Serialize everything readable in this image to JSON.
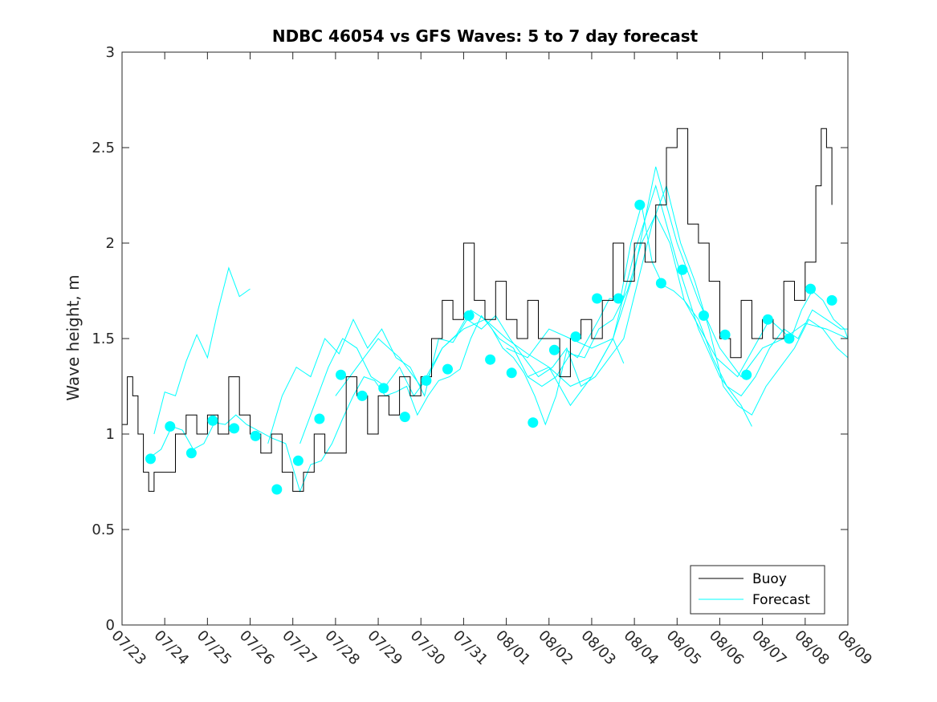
{
  "chart_data": {
    "type": "line",
    "title": "NDBC 46054 vs GFS Waves: 5 to 7 day forecast",
    "xlabel": "",
    "ylabel": "Wave height, m",
    "ylim": [
      0,
      3
    ],
    "yticks": [
      0,
      0.5,
      1,
      1.5,
      2,
      2.5,
      3
    ],
    "xlim": [
      "2023-07-23",
      "2023-08-09"
    ],
    "xtick_labels": [
      "07/23",
      "07/24",
      "07/25",
      "07/26",
      "07/27",
      "07/28",
      "07/29",
      "07/30",
      "07/31",
      "08/01",
      "08/02",
      "08/03",
      "08/04",
      "08/05",
      "08/06",
      "08/07",
      "08/08",
      "08/09"
    ],
    "grid": false,
    "legend": {
      "position": "bottom-right",
      "entries": [
        "Buoy",
        "Forecast"
      ]
    },
    "colors": {
      "buoy": "#000000",
      "forecast": "#00ffff",
      "axis": "#262626"
    },
    "series": [
      {
        "name": "Buoy",
        "color": "#000000",
        "x": [
          "07/23 00:00",
          "07/23 03:00",
          "07/23 06:00",
          "07/23 09:00",
          "07/23 12:00",
          "07/23 15:00",
          "07/23 18:00",
          "07/24 00:00",
          "07/24 06:00",
          "07/24 12:00",
          "07/24 18:00",
          "07/25 00:00",
          "07/25 06:00",
          "07/25 12:00",
          "07/25 18:00",
          "07/26 00:00",
          "07/26 06:00",
          "07/26 12:00",
          "07/26 18:00",
          "07/27 00:00",
          "07/27 06:00",
          "07/27 12:00",
          "07/27 18:00",
          "07/28 00:00",
          "07/28 06:00",
          "07/28 12:00",
          "07/28 18:00",
          "07/29 00:00",
          "07/29 06:00",
          "07/29 12:00",
          "07/29 18:00",
          "07/30 00:00",
          "07/30 06:00",
          "07/30 12:00",
          "07/30 18:00",
          "07/31 00:00",
          "07/31 06:00",
          "07/31 12:00",
          "07/31 18:00",
          "08/01 00:00",
          "08/01 06:00",
          "08/01 12:00",
          "08/01 18:00",
          "08/02 00:00",
          "08/02 06:00",
          "08/02 12:00",
          "08/02 18:00",
          "08/03 00:00",
          "08/03 06:00",
          "08/03 12:00",
          "08/03 18:00",
          "08/04 00:00",
          "08/04 06:00",
          "08/04 12:00",
          "08/04 18:00",
          "08/05 00:00",
          "08/05 06:00",
          "08/05 12:00",
          "08/05 18:00",
          "08/06 00:00",
          "08/06 06:00",
          "08/06 12:00",
          "08/06 18:00",
          "08/07 00:00",
          "08/07 06:00",
          "08/07 12:00",
          "08/07 18:00",
          "08/08 00:00",
          "08/08 06:00",
          "08/08 09:00",
          "08/08 12:00",
          "08/08 15:00"
        ],
        "values": [
          1.05,
          1.3,
          1.2,
          1.0,
          0.8,
          0.7,
          0.8,
          0.8,
          1.0,
          1.1,
          1.0,
          1.1,
          1.0,
          1.3,
          1.1,
          1.0,
          0.9,
          1.0,
          0.8,
          0.7,
          0.8,
          1.0,
          0.9,
          0.9,
          1.3,
          1.2,
          1.0,
          1.2,
          1.1,
          1.3,
          1.2,
          1.3,
          1.5,
          1.7,
          1.6,
          2.0,
          1.7,
          1.6,
          1.8,
          1.6,
          1.5,
          1.7,
          1.5,
          1.5,
          1.3,
          1.5,
          1.6,
          1.5,
          1.7,
          2.0,
          1.8,
          2.0,
          1.9,
          2.2,
          2.5,
          2.6,
          2.1,
          2.0,
          1.8,
          1.5,
          1.4,
          1.7,
          1.5,
          1.6,
          1.5,
          1.8,
          1.7,
          1.9,
          2.3,
          2.6,
          2.5,
          2.2
        ]
      }
    ],
    "forecast_runs": [
      {
        "x": [
          "07/23 16:00",
          "07/23 22:00",
          "07/24 04:00",
          "07/24 10:00",
          "07/24 16:00",
          "07/24 22:00",
          "07/25 04:00",
          "07/25 10:00",
          "07/25 16:00",
          "07/25 22:00",
          "07/26 04:00",
          "07/26 12:00",
          "07/26 20:00",
          "07/27 04:00",
          "07/27 10:00",
          "07/27 16:00",
          "07/27 22:00",
          "07/28 04:00",
          "07/28 10:00",
          "07/28 16:00",
          "07/28 22:00",
          "07/29 04:00",
          "07/29 10:00",
          "07/29 16:00",
          "07/29 22:00",
          "07/30 04:00",
          "07/30 10:00",
          "07/30 16:00",
          "07/30 22:00",
          "07/31 04:00",
          "07/31 10:00",
          "07/31 16:00",
          "07/31 22:00",
          "08/01 04:00",
          "08/01 10:00",
          "08/01 16:00",
          "08/01 22:00",
          "08/02 04:00",
          "08/02 10:00",
          "08/02 16:00",
          "08/02 22:00",
          "08/03 04:00",
          "08/03 10:00",
          "08/03 16:00",
          "08/03 22:00",
          "08/04 04:00",
          "08/04 10:00",
          "08/04 16:00",
          "08/04 22:00",
          "08/05 04:00",
          "08/05 10:00",
          "08/05 16:00",
          "08/05 22:00",
          "08/06 04:00",
          "08/06 10:00",
          "08/06 16:00",
          "08/06 22:00",
          "08/07 04:00",
          "08/07 10:00",
          "08/07 16:00",
          "08/07 22:00",
          "08/08 04:00",
          "08/08 10:00",
          "08/08 16:00",
          "08/08 22:00",
          "08/09 00:00"
        ],
        "values": [
          0.88,
          0.92,
          1.04,
          1.02,
          0.92,
          0.95,
          1.06,
          1.05,
          1.1,
          1.05,
          1.02,
          0.98,
          0.95,
          0.7,
          0.84,
          0.86,
          0.95,
          1.08,
          1.2,
          1.3,
          1.28,
          1.2,
          1.22,
          1.25,
          1.1,
          1.2,
          1.28,
          1.3,
          1.34,
          1.5,
          1.62,
          1.55,
          1.45,
          1.4,
          1.32,
          1.2,
          1.05,
          1.2,
          1.44,
          1.4,
          1.5,
          1.6,
          1.71,
          1.7,
          2.0,
          2.2,
          1.9,
          1.78,
          1.75,
          1.7,
          1.6,
          1.5,
          1.4,
          1.35,
          1.3,
          1.4,
          1.5,
          1.6,
          1.55,
          1.5,
          1.65,
          1.75,
          1.7,
          1.6,
          1.55,
          1.5
        ]
      },
      {
        "x": [
          "07/23 18:00",
          "07/24 00:00",
          "07/24 06:00",
          "07/24 12:00",
          "07/24 18:00",
          "07/25 00:00",
          "07/25 06:00",
          "07/25 12:00",
          "07/25 18:00",
          "07/26 00:00"
        ],
        "values": [
          1.0,
          1.22,
          1.2,
          1.38,
          1.52,
          1.4,
          1.65,
          1.87,
          1.72,
          1.76
        ]
      },
      {
        "x": [
          "07/26 10:00",
          "07/26 18:00",
          "07/27 02:00",
          "07/27 10:00",
          "07/27 18:00",
          "07/28 02:00",
          "07/28 10:00",
          "07/28 18:00",
          "07/29 02:00",
          "07/29 10:00",
          "07/29 18:00",
          "07/30 02:00",
          "07/30 10:00",
          "07/30 18:00",
          "07/31 02:00",
          "07/31 10:00",
          "07/31 18:00",
          "08/01 02:00",
          "08/01 10:00",
          "08/01 18:00",
          "08/02 02:00",
          "08/02 10:00",
          "08/02 18:00",
          "08/03 02:00",
          "08/03 10:00",
          "08/03 18:00",
          "08/04 02:00",
          "08/04 10:00",
          "08/04 18:00",
          "08/05 02:00",
          "08/05 10:00",
          "08/05 18:00",
          "08/06 02:00",
          "08/06 10:00",
          "08/06 18:00",
          "08/07 02:00",
          "08/07 10:00",
          "08/07 18:00",
          "08/08 02:00",
          "08/08 10:00",
          "08/08 18:00",
          "08/09 00:00"
        ],
        "values": [
          0.95,
          1.2,
          1.35,
          1.3,
          1.5,
          1.42,
          1.6,
          1.45,
          1.55,
          1.4,
          1.35,
          1.2,
          1.5,
          1.48,
          1.6,
          1.55,
          1.62,
          1.5,
          1.4,
          1.3,
          1.35,
          1.45,
          1.25,
          1.3,
          1.4,
          1.5,
          1.8,
          2.1,
          2.3,
          2.0,
          1.8,
          1.55,
          1.25,
          1.15,
          1.1,
          1.25,
          1.35,
          1.45,
          1.6,
          1.55,
          1.45,
          1.4
        ]
      },
      {
        "x": [
          "07/27 04:00",
          "07/27 12:00",
          "07/27 20:00",
          "07/28 04:00",
          "07/28 12:00",
          "07/28 20:00",
          "07/29 04:00",
          "07/29 12:00",
          "07/29 20:00",
          "07/30 04:00",
          "07/30 12:00",
          "07/30 20:00",
          "07/31 04:00",
          "07/31 12:00",
          "07/31 20:00",
          "08/01 04:00",
          "08/01 12:00",
          "08/01 20:00",
          "08/02 04:00",
          "08/02 12:00",
          "08/02 20:00",
          "08/03 04:00",
          "08/03 12:00",
          "08/03 20:00",
          "08/04 04:00",
          "08/04 12:00",
          "08/04 20:00",
          "08/05 04:00",
          "08/05 12:00",
          "08/05 20:00",
          "08/06 04:00",
          "08/06 12:00",
          "08/06 20:00",
          "08/07 04:00",
          "08/07 12:00",
          "08/07 20:00",
          "08/08 04:00",
          "08/08 12:00",
          "08/08 20:00",
          "08/09 00:00"
        ],
        "values": [
          0.95,
          1.15,
          1.35,
          1.5,
          1.45,
          1.3,
          1.25,
          1.35,
          1.2,
          1.3,
          1.45,
          1.52,
          1.65,
          1.6,
          1.5,
          1.45,
          1.3,
          1.25,
          1.3,
          1.42,
          1.4,
          1.55,
          1.6,
          1.75,
          2.0,
          2.15,
          2.0,
          1.7,
          1.6,
          1.4,
          1.25,
          1.2,
          1.3,
          1.45,
          1.55,
          1.5,
          1.65,
          1.6,
          1.55,
          1.55
        ]
      },
      {
        "x": [
          "07/28 00:00",
          "07/28 12:00",
          "07/29 00:00",
          "07/29 12:00",
          "07/30 00:00",
          "07/30 12:00",
          "07/31 00:00",
          "07/31 12:00",
          "08/01 00:00",
          "08/01 12:00",
          "08/02 00:00",
          "08/02 12:00",
          "08/03 00:00",
          "08/03 12:00",
          "08/04 00:00",
          "08/04 12:00",
          "08/05 00:00",
          "08/05 12:00",
          "08/06 00:00",
          "08/06 12:00",
          "08/07 00:00",
          "08/07 12:00",
          "08/08 00:00",
          "08/08 12:00",
          "08/09 00:00"
        ],
        "values": [
          1.2,
          1.35,
          1.5,
          1.4,
          1.25,
          1.45,
          1.55,
          1.6,
          1.5,
          1.42,
          1.35,
          1.15,
          1.3,
          1.5,
          1.85,
          2.4,
          2.0,
          1.7,
          1.45,
          1.3,
          1.45,
          1.5,
          1.58,
          1.55,
          1.5
        ]
      },
      {
        "x": [
          "08/01 12:00",
          "08/02 00:00",
          "08/02 12:00",
          "08/03 00:00",
          "08/03 12:00",
          "08/04 00:00",
          "08/04 12:00",
          "08/05 00:00",
          "08/05 12:00",
          "08/06 00:00",
          "08/06 12:00",
          "08/06 18:00"
        ],
        "values": [
          1.3,
          1.35,
          1.25,
          1.3,
          1.5,
          1.95,
          2.3,
          1.9,
          1.55,
          1.3,
          1.15,
          1.04
        ]
      },
      {
        "x": [
          "08/01 00:00",
          "08/01 12:00",
          "08/02 00:00",
          "08/02 12:00",
          "08/03 00:00",
          "08/03 12:00",
          "08/03 18:00"
        ],
        "values": [
          1.45,
          1.4,
          1.55,
          1.5,
          1.45,
          1.5,
          1.37
        ]
      }
    ],
    "forecast_markers": {
      "x": [
        "07/23 16:00",
        "07/24 03:00",
        "07/24 15:00",
        "07/25 03:00",
        "07/25 15:00",
        "07/26 03:00",
        "07/26 15:00",
        "07/27 03:00",
        "07/27 15:00",
        "07/28 03:00",
        "07/28 15:00",
        "07/29 03:00",
        "07/29 15:00",
        "07/30 03:00",
        "07/30 15:00",
        "07/31 03:00",
        "07/31 15:00",
        "08/01 03:00",
        "08/01 15:00",
        "08/02 03:00",
        "08/02 15:00",
        "08/03 03:00",
        "08/03 15:00",
        "08/04 03:00",
        "08/04 15:00",
        "08/05 03:00",
        "08/05 15:00",
        "08/06 03:00",
        "08/06 15:00",
        "08/07 03:00",
        "08/07 15:00",
        "08/08 03:00",
        "08/08 15:00"
      ],
      "values": [
        0.87,
        1.04,
        0.9,
        1.07,
        1.03,
        0.99,
        0.71,
        0.86,
        1.08,
        1.31,
        1.2,
        1.24,
        1.09,
        1.28,
        1.34,
        1.62,
        1.39,
        1.32,
        1.06,
        1.44,
        1.51,
        1.71,
        1.71,
        2.2,
        1.79,
        1.86,
        1.62,
        1.52,
        1.31,
        1.6,
        1.5,
        1.76,
        1.7
      ]
    }
  }
}
